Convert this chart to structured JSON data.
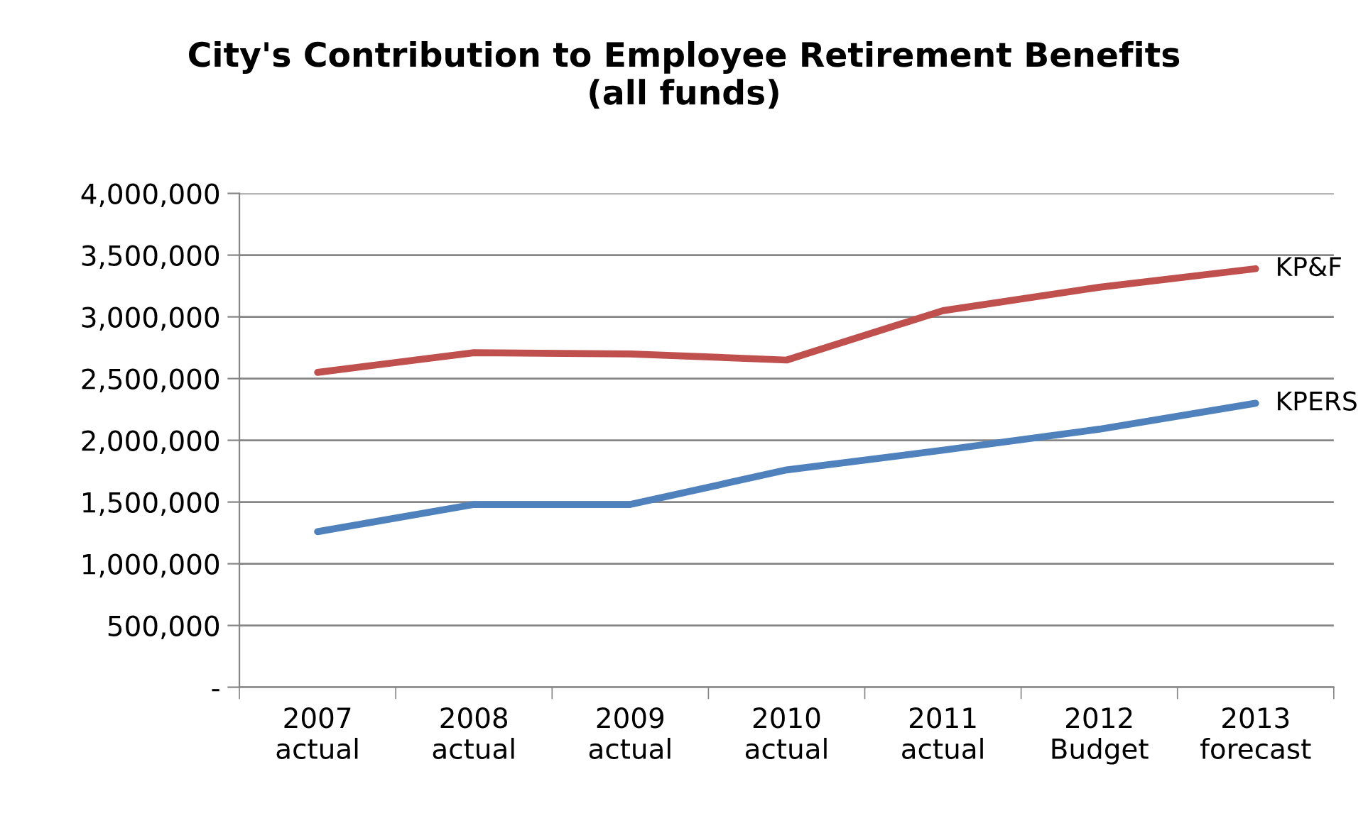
{
  "chart_data": {
    "type": "line",
    "title": "City's Contribution to Employee Retirement Benefits\n(all funds)",
    "categories": [
      "2007\nactual",
      "2008\nactual",
      "2009\nactual",
      "2010\nactual",
      "2011\nactual",
      "2012\nBudget",
      "2013\nforecast"
    ],
    "series": [
      {
        "name": "KP&F",
        "color": "#c0504d",
        "values": [
          2550000,
          2710000,
          2700000,
          2650000,
          3050000,
          3240000,
          3390000
        ]
      },
      {
        "name": "KPERS",
        "color": "#4f81bd",
        "values": [
          1260000,
          1480000,
          1480000,
          1760000,
          1920000,
          2090000,
          2300000
        ]
      }
    ],
    "ylim": [
      0,
      4000000
    ],
    "yticks": [
      {
        "value": 0,
        "label": "-"
      },
      {
        "value": 500000,
        "label": "500,000"
      },
      {
        "value": 1000000,
        "label": "1,000,000"
      },
      {
        "value": 1500000,
        "label": "1,500,000"
      },
      {
        "value": 2000000,
        "label": "2,000,000"
      },
      {
        "value": 2500000,
        "label": "2,500,000"
      },
      {
        "value": 3000000,
        "label": "3,000,000"
      },
      {
        "value": 3500000,
        "label": "3,500,000"
      },
      {
        "value": 4000000,
        "label": "4,000,000"
      }
    ],
    "grid": "y",
    "legend": false,
    "marker": "none",
    "line_style": "solid"
  }
}
